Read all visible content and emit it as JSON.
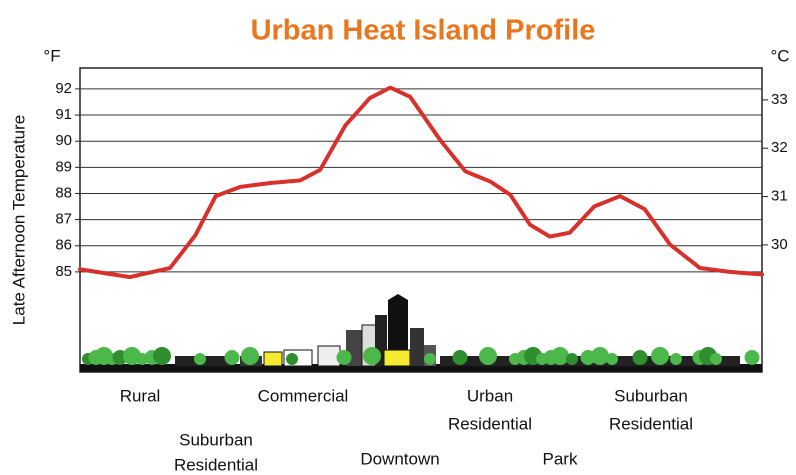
{
  "chart_data": {
    "type": "line",
    "title": "Urban Heat Island Profile",
    "y_unit": "°F",
    "y2_unit": "°C",
    "ylabel": "Late Afternoon Temperature",
    "xlim": [
      0,
      100
    ],
    "ylim": [
      81.17,
      92.8
    ],
    "yticks": [
      85,
      86,
      87,
      88,
      89,
      90,
      91,
      92
    ],
    "y2lim": [
      27.37,
      33.66
    ],
    "y2ticks": [
      30,
      31,
      32,
      33
    ],
    "grid": true,
    "zones": [
      [
        "Rural"
      ],
      [
        "Suburban",
        "Residential"
      ],
      [
        "Commercial"
      ],
      [
        "Downtown"
      ],
      [
        "Urban",
        "Residential"
      ],
      [
        "Park"
      ],
      [
        "Suburban",
        "Residential"
      ]
    ],
    "x": [
      0,
      7.3,
      13.2,
      16.9,
      19.9,
      23.5,
      27.9,
      32.3,
      35.2,
      38.9,
      42.5,
      45.5,
      48.4,
      52.8,
      56.5,
      60.2,
      63.1,
      66,
      68.9,
      71.8,
      75.4,
      79.2,
      82.8,
      86.5,
      90.9,
      95.3,
      100
    ],
    "series": [
      {
        "name": "Temperature",
        "color": "#d8302a",
        "values": [
          85.1,
          84.8,
          85.15,
          86.4,
          87.9,
          88.25,
          88.4,
          88.5,
          88.9,
          90.6,
          91.65,
          92.05,
          91.7,
          90.05,
          88.85,
          88.45,
          87.95,
          86.8,
          86.35,
          86.5,
          87.5,
          87.9,
          87.4,
          86.05,
          85.15,
          85.0,
          84.9
        ]
      }
    ]
  }
}
